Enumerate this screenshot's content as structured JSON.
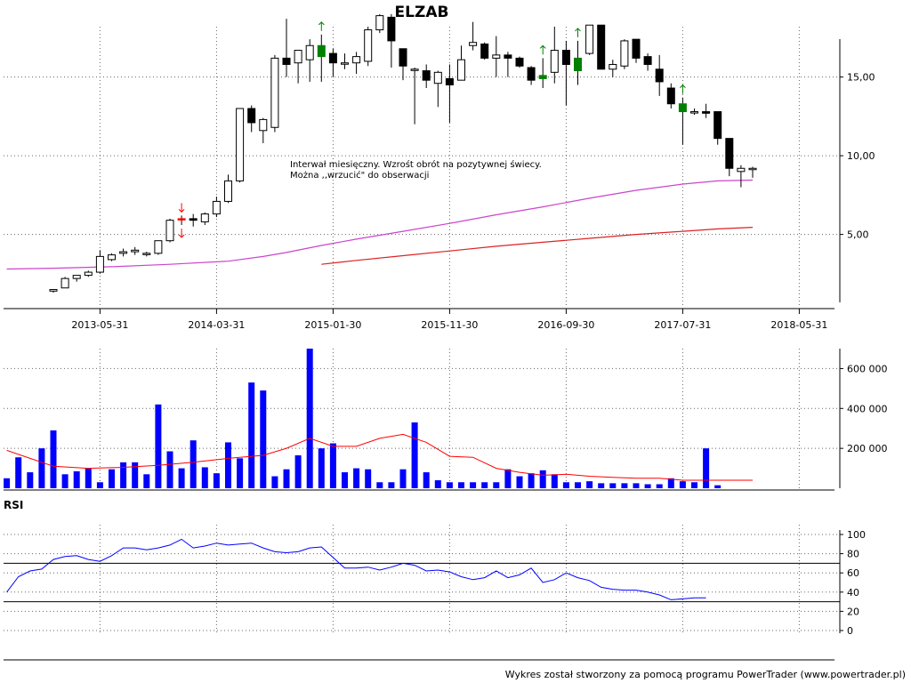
{
  "title": "ELZAB",
  "footer": "Wykres został stworzony za pomocą programu PowerTrader (www.powertrader.pl)",
  "annotation": {
    "line1": "Interwał miesięczny. Wzrośt obrót na pozytywnej świecy.",
    "line2": "Można ,,wrzucić\" do obserwacji"
  },
  "colors": {
    "up_candle": "#ffffff",
    "down_candle": "#000000",
    "highlight_up": "#008000",
    "highlight_down": "#ff0000",
    "ma_long": "#cc44cc",
    "ma_short": "#dd2222",
    "volume": "#0000ff",
    "volume_ma": "#ff0000",
    "rsi": "#0000ff"
  },
  "chart_data": [
    {
      "type": "candlestick",
      "name": "price",
      "x_tick_labels": [
        "2013-05-31",
        "2014-03-31",
        "2015-01-30",
        "2015-11-30",
        "2016-09-30",
        "2017-07-31",
        "2018-05-31"
      ],
      "x_tick_months": [
        4,
        14,
        24,
        34,
        44,
        54,
        64
      ],
      "y_ticks": [
        5,
        10,
        15
      ],
      "y_tick_labels": [
        "5,00",
        "10,00",
        "15,00"
      ],
      "ylim": [
        0.4,
        18.2
      ],
      "grid": true,
      "candles": [
        {
          "m": 0,
          "o": 1.4,
          "h": 1.5,
          "l": 1.3,
          "c": 1.5
        },
        {
          "m": 1,
          "o": 1.6,
          "h": 2.3,
          "l": 1.6,
          "c": 2.2
        },
        {
          "m": 2,
          "o": 2.2,
          "h": 2.4,
          "l": 2.0,
          "c": 2.4
        },
        {
          "m": 3,
          "o": 2.4,
          "h": 2.7,
          "l": 2.3,
          "c": 2.6
        },
        {
          "m": 4,
          "o": 2.6,
          "h": 4.0,
          "l": 2.5,
          "c": 3.6
        },
        {
          "m": 5,
          "o": 3.4,
          "h": 3.8,
          "l": 3.3,
          "c": 3.7
        },
        {
          "m": 6,
          "o": 3.8,
          "h": 4.1,
          "l": 3.6,
          "c": 3.9
        },
        {
          "m": 7,
          "o": 3.9,
          "h": 4.2,
          "l": 3.7,
          "c": 4.0
        },
        {
          "m": 8,
          "o": 3.8,
          "h": 3.9,
          "l": 3.6,
          "c": 3.8
        },
        {
          "m": 9,
          "o": 3.8,
          "h": 4.6,
          "l": 3.7,
          "c": 4.6
        },
        {
          "m": 10,
          "o": 4.6,
          "h": 6.0,
          "l": 4.5,
          "c": 5.9
        },
        {
          "m": 11,
          "o": 6.0,
          "h": 6.2,
          "l": 5.6,
          "c": 6.0,
          "highlight": "down"
        },
        {
          "m": 12,
          "o": 6.0,
          "h": 6.3,
          "l": 5.5,
          "c": 5.9
        },
        {
          "m": 13,
          "o": 5.8,
          "h": 6.4,
          "l": 5.6,
          "c": 6.3
        },
        {
          "m": 14,
          "o": 6.3,
          "h": 7.4,
          "l": 6.1,
          "c": 7.1
        },
        {
          "m": 15,
          "o": 7.1,
          "h": 8.8,
          "l": 7.0,
          "c": 8.4
        },
        {
          "m": 16,
          "o": 8.4,
          "h": 13.0,
          "l": 8.3,
          "c": 13.0
        },
        {
          "m": 17,
          "o": 13.0,
          "h": 13.2,
          "l": 11.5,
          "c": 12.1
        },
        {
          "m": 18,
          "o": 11.6,
          "h": 12.4,
          "l": 10.8,
          "c": 12.3
        },
        {
          "m": 19,
          "o": 11.8,
          "h": 16.4,
          "l": 11.5,
          "c": 16.2
        },
        {
          "m": 20,
          "o": 16.2,
          "h": 18.7,
          "l": 15.0,
          "c": 15.8
        },
        {
          "m": 21,
          "o": 15.9,
          "h": 16.6,
          "l": 14.6,
          "c": 16.7
        },
        {
          "m": 22,
          "o": 16.1,
          "h": 17.4,
          "l": 14.7,
          "c": 17.0
        },
        {
          "m": 23,
          "o": 17.0,
          "h": 17.7,
          "l": 14.7,
          "c": 16.3,
          "highlight": "up"
        },
        {
          "m": 24,
          "o": 16.5,
          "h": 16.8,
          "l": 15.0,
          "c": 15.9
        },
        {
          "m": 25,
          "o": 15.9,
          "h": 16.5,
          "l": 15.5,
          "c": 15.9
        },
        {
          "m": 26,
          "o": 15.9,
          "h": 16.6,
          "l": 15.2,
          "c": 16.3
        },
        {
          "m": 27,
          "o": 16.0,
          "h": 18.2,
          "l": 15.7,
          "c": 18.0
        },
        {
          "m": 28,
          "o": 18.0,
          "h": 19.0,
          "l": 17.8,
          "c": 18.9
        },
        {
          "m": 29,
          "o": 18.8,
          "h": 19.0,
          "l": 15.6,
          "c": 17.3
        },
        {
          "m": 30,
          "o": 16.8,
          "h": 16.8,
          "l": 14.8,
          "c": 15.7
        },
        {
          "m": 31,
          "o": 15.5,
          "h": 15.6,
          "l": 12.0,
          "c": 15.5
        },
        {
          "m": 32,
          "o": 15.4,
          "h": 15.8,
          "l": 14.3,
          "c": 14.8
        },
        {
          "m": 33,
          "o": 14.6,
          "h": 15.4,
          "l": 13.1,
          "c": 15.3
        },
        {
          "m": 34,
          "o": 14.9,
          "h": 15.8,
          "l": 12.1,
          "c": 14.5
        },
        {
          "m": 35,
          "o": 14.8,
          "h": 17.0,
          "l": 14.8,
          "c": 16.1
        },
        {
          "m": 36,
          "o": 17.0,
          "h": 18.5,
          "l": 16.7,
          "c": 17.2
        },
        {
          "m": 37,
          "o": 17.1,
          "h": 17.2,
          "l": 16.1,
          "c": 16.2
        },
        {
          "m": 38,
          "o": 16.2,
          "h": 17.6,
          "l": 15.0,
          "c": 16.4
        },
        {
          "m": 39,
          "o": 16.4,
          "h": 16.6,
          "l": 15.0,
          "c": 16.2
        },
        {
          "m": 40,
          "o": 16.2,
          "h": 16.3,
          "l": 15.6,
          "c": 15.7
        },
        {
          "m": 41,
          "o": 15.6,
          "h": 15.7,
          "l": 14.5,
          "c": 14.8
        },
        {
          "m": 42,
          "o": 14.9,
          "h": 16.2,
          "l": 14.3,
          "c": 15.1,
          "highlight": "up"
        },
        {
          "m": 43,
          "o": 15.3,
          "h": 18.2,
          "l": 14.6,
          "c": 16.7
        },
        {
          "m": 44,
          "o": 16.7,
          "h": 17.3,
          "l": 13.2,
          "c": 15.8
        },
        {
          "m": 45,
          "o": 15.4,
          "h": 17.3,
          "l": 14.5,
          "c": 16.2,
          "highlight": "up"
        },
        {
          "m": 46,
          "o": 16.5,
          "h": 18.3,
          "l": 16.4,
          "c": 18.3
        },
        {
          "m": 47,
          "o": 18.3,
          "h": 18.3,
          "l": 15.5,
          "c": 15.5
        },
        {
          "m": 48,
          "o": 15.5,
          "h": 16.1,
          "l": 15.0,
          "c": 15.8
        },
        {
          "m": 49,
          "o": 15.7,
          "h": 17.4,
          "l": 15.5,
          "c": 17.3
        },
        {
          "m": 50,
          "o": 17.4,
          "h": 17.4,
          "l": 15.9,
          "c": 16.2
        },
        {
          "m": 51,
          "o": 16.3,
          "h": 16.5,
          "l": 15.4,
          "c": 15.8
        },
        {
          "m": 52,
          "o": 15.5,
          "h": 16.4,
          "l": 13.8,
          "c": 14.7
        },
        {
          "m": 53,
          "o": 14.3,
          "h": 14.6,
          "l": 13.0,
          "c": 13.3
        },
        {
          "m": 54,
          "o": 13.3,
          "h": 13.7,
          "l": 10.7,
          "c": 12.8,
          "highlight": "up"
        },
        {
          "m": 55,
          "o": 12.8,
          "h": 13.0,
          "l": 12.6,
          "c": 12.8
        },
        {
          "m": 56,
          "o": 12.8,
          "h": 13.3,
          "l": 12.4,
          "c": 12.7
        },
        {
          "m": 57,
          "o": 12.8,
          "h": 12.8,
          "l": 10.7,
          "c": 11.1
        },
        {
          "m": 58,
          "o": 11.1,
          "h": 11.1,
          "l": 8.7,
          "c": 9.2
        },
        {
          "m": 59,
          "o": 9.0,
          "h": 9.4,
          "l": 8.0,
          "c": 9.2
        },
        {
          "m": 60,
          "o": 9.2,
          "h": 9.3,
          "l": 8.6,
          "c": 9.2
        }
      ],
      "arrows": [
        {
          "m": 11,
          "dir": "down",
          "color": "red",
          "at": "above"
        },
        {
          "m": 11,
          "dir": "down",
          "color": "red",
          "at": "below"
        },
        {
          "m": 23,
          "dir": "up",
          "color": "green",
          "at": "above"
        },
        {
          "m": 42,
          "dir": "up",
          "color": "green",
          "at": "above"
        },
        {
          "m": 45,
          "dir": "up",
          "color": "green",
          "at": "above"
        },
        {
          "m": 54,
          "dir": "up",
          "color": "green",
          "at": "above"
        }
      ],
      "ma_long": [
        [
          -4,
          2.8
        ],
        [
          0,
          2.85
        ],
        [
          5,
          2.95
        ],
        [
          10,
          3.1
        ],
        [
          15,
          3.3
        ],
        [
          18,
          3.6
        ],
        [
          20,
          3.85
        ],
        [
          23,
          4.3
        ],
        [
          26,
          4.7
        ],
        [
          30,
          5.2
        ],
        [
          34,
          5.7
        ],
        [
          38,
          6.25
        ],
        [
          42,
          6.75
        ],
        [
          46,
          7.3
        ],
        [
          50,
          7.8
        ],
        [
          54,
          8.2
        ],
        [
          57,
          8.4
        ],
        [
          60,
          8.45
        ]
      ],
      "ma_short": [
        [
          23,
          3.1
        ],
        [
          26,
          3.35
        ],
        [
          30,
          3.65
        ],
        [
          34,
          3.95
        ],
        [
          38,
          4.25
        ],
        [
          42,
          4.5
        ],
        [
          46,
          4.75
        ],
        [
          50,
          5.0
        ],
        [
          54,
          5.2
        ],
        [
          57,
          5.35
        ],
        [
          60,
          5.45
        ]
      ]
    },
    {
      "type": "bar",
      "name": "volume",
      "y_ticks": [
        200000,
        400000,
        600000
      ],
      "y_tick_labels": [
        "200 000",
        "400 000",
        "600 000"
      ],
      "ylim": [
        0,
        700000
      ],
      "values": [
        50000,
        155000,
        80000,
        200000,
        290000,
        70000,
        85000,
        100000,
        30000,
        95000,
        130000,
        130000,
        70000,
        420000,
        185000,
        100000,
        240000,
        105000,
        75000,
        230000,
        150000,
        530000,
        490000,
        60000,
        95000,
        165000,
        700000,
        200000,
        225000,
        80000,
        100000,
        95000,
        30000,
        30000,
        95000,
        330000,
        80000,
        40000,
        30000,
        30000,
        30000,
        30000,
        30000,
        95000,
        60000,
        75000,
        90000,
        70000,
        30000,
        30000,
        35000,
        25000,
        25000,
        25000,
        25000,
        20000,
        20000,
        50000,
        35000,
        30000,
        200000,
        15000
      ],
      "ma": [
        [
          -4,
          190000
        ],
        [
          -2,
          150000
        ],
        [
          0,
          110000
        ],
        [
          3,
          100000
        ],
        [
          6,
          105000
        ],
        [
          9,
          115000
        ],
        [
          12,
          130000
        ],
        [
          15,
          150000
        ],
        [
          18,
          165000
        ],
        [
          20,
          200000
        ],
        [
          22,
          250000
        ],
        [
          24,
          210000
        ],
        [
          26,
          210000
        ],
        [
          28,
          250000
        ],
        [
          30,
          270000
        ],
        [
          32,
          230000
        ],
        [
          34,
          160000
        ],
        [
          36,
          155000
        ],
        [
          38,
          100000
        ],
        [
          40,
          80000
        ],
        [
          42,
          65000
        ],
        [
          44,
          70000
        ],
        [
          46,
          60000
        ],
        [
          48,
          55000
        ],
        [
          50,
          50000
        ],
        [
          52,
          50000
        ],
        [
          54,
          40000
        ],
        [
          56,
          40000
        ],
        [
          58,
          40000
        ],
        [
          60,
          40000
        ]
      ]
    },
    {
      "type": "line",
      "name": "RSI",
      "label": "RSI",
      "y_ticks": [
        0,
        20,
        40,
        60,
        80,
        100
      ],
      "y_tick_labels": [
        "0",
        "20",
        "40",
        "60",
        "80",
        "100"
      ],
      "ylim": [
        0,
        105
      ],
      "ref_lines": [
        30,
        70
      ],
      "points": [
        [
          -4,
          40
        ],
        [
          -3,
          56
        ],
        [
          -2,
          62
        ],
        [
          -1,
          64
        ],
        [
          0,
          74
        ],
        [
          1,
          77
        ],
        [
          2,
          78
        ],
        [
          3,
          74
        ],
        [
          4,
          72
        ],
        [
          5,
          78
        ],
        [
          6,
          86
        ],
        [
          7,
          86
        ],
        [
          8,
          84
        ],
        [
          9,
          86
        ],
        [
          10,
          89
        ],
        [
          11,
          95
        ],
        [
          12,
          86
        ],
        [
          13,
          88
        ],
        [
          14,
          91
        ],
        [
          15,
          89
        ],
        [
          16,
          90
        ],
        [
          17,
          91
        ],
        [
          18,
          86
        ],
        [
          19,
          82
        ],
        [
          20,
          81
        ],
        [
          21,
          82
        ],
        [
          22,
          86
        ],
        [
          23,
          87
        ],
        [
          24,
          76
        ],
        [
          25,
          65
        ],
        [
          26,
          65
        ],
        [
          27,
          66
        ],
        [
          28,
          63
        ],
        [
          29,
          66
        ],
        [
          30,
          70
        ],
        [
          31,
          68
        ],
        [
          32,
          62
        ],
        [
          33,
          63
        ],
        [
          34,
          61
        ],
        [
          35,
          56
        ],
        [
          36,
          53
        ],
        [
          37,
          55
        ],
        [
          38,
          62
        ],
        [
          39,
          55
        ],
        [
          40,
          58
        ],
        [
          41,
          65
        ],
        [
          42,
          50
        ],
        [
          43,
          53
        ],
        [
          44,
          60
        ],
        [
          45,
          55
        ],
        [
          46,
          52
        ],
        [
          47,
          45
        ],
        [
          48,
          43
        ],
        [
          49,
          42
        ],
        [
          50,
          42
        ],
        [
          51,
          40
        ],
        [
          52,
          37
        ],
        [
          53,
          32
        ],
        [
          54,
          33
        ],
        [
          55,
          34
        ],
        [
          56,
          34
        ]
      ]
    }
  ]
}
